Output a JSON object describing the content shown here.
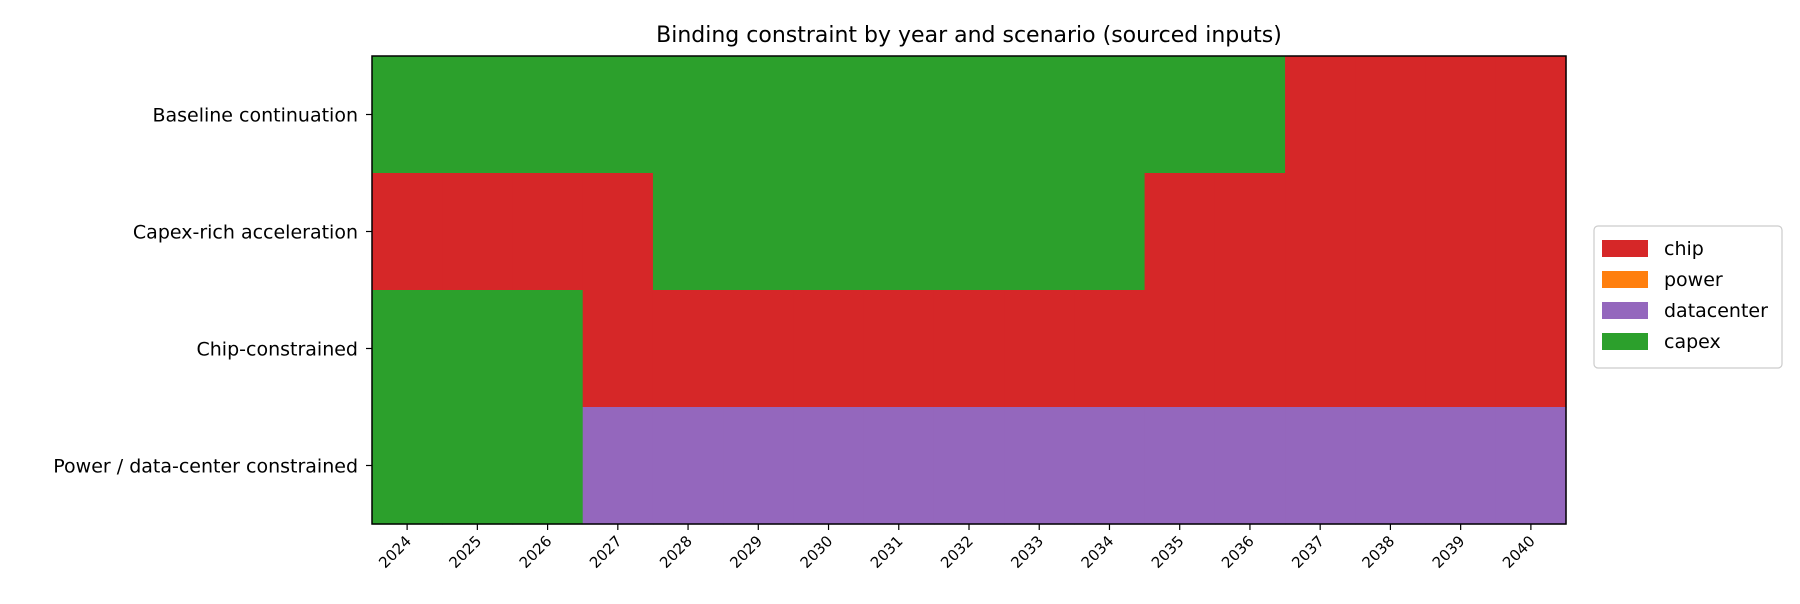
{
  "chart_data": {
    "type": "heatmap",
    "title": "Binding constraint by year and scenario (sourced inputs)",
    "x": [
      "2024",
      "2025",
      "2026",
      "2027",
      "2028",
      "2029",
      "2030",
      "2031",
      "2032",
      "2033",
      "2034",
      "2035",
      "2036",
      "2037",
      "2038",
      "2039",
      "2040"
    ],
    "y": [
      "Baseline continuation",
      "Capex-rich acceleration",
      "Chip-constrained",
      "Power / data-center constrained"
    ],
    "values": [
      [
        "capex",
        "capex",
        "capex",
        "capex",
        "capex",
        "capex",
        "capex",
        "capex",
        "capex",
        "capex",
        "capex",
        "capex",
        "capex",
        "chip",
        "chip",
        "chip",
        "chip"
      ],
      [
        "chip",
        "chip",
        "chip",
        "chip",
        "capex",
        "capex",
        "capex",
        "capex",
        "capex",
        "capex",
        "capex",
        "chip",
        "chip",
        "chip",
        "chip",
        "chip",
        "chip"
      ],
      [
        "capex",
        "capex",
        "capex",
        "chip",
        "chip",
        "chip",
        "chip",
        "chip",
        "chip",
        "chip",
        "chip",
        "chip",
        "chip",
        "chip",
        "chip",
        "chip",
        "chip"
      ],
      [
        "capex",
        "capex",
        "capex",
        "datacenter",
        "datacenter",
        "datacenter",
        "datacenter",
        "datacenter",
        "datacenter",
        "datacenter",
        "datacenter",
        "datacenter",
        "datacenter",
        "datacenter",
        "datacenter",
        "datacenter",
        "datacenter"
      ]
    ],
    "legend": {
      "placement": "right",
      "entries": [
        {
          "label": "chip",
          "color": "#d62728"
        },
        {
          "label": "power",
          "color": "#ff7f0e"
        },
        {
          "label": "datacenter",
          "color": "#9467bd"
        },
        {
          "label": "capex",
          "color": "#2ca02c"
        }
      ]
    },
    "grid": false
  }
}
